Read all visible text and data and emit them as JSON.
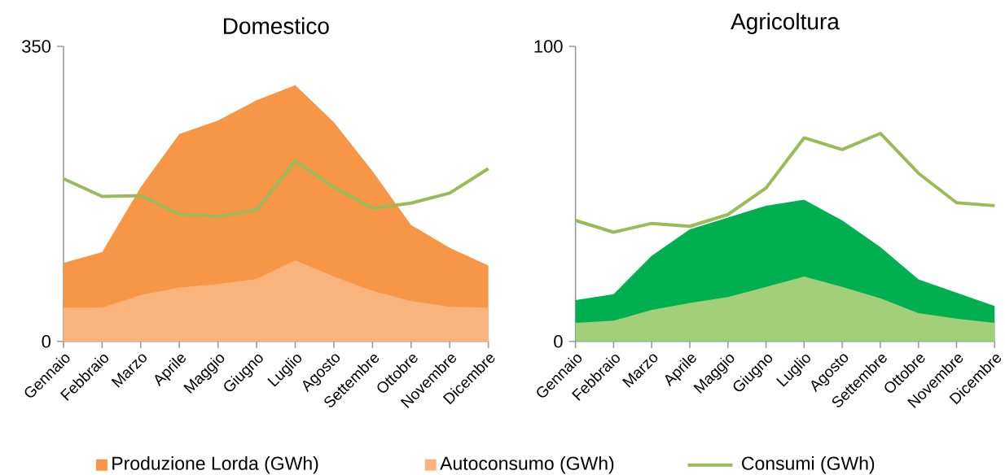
{
  "chart_data": [
    {
      "type": "area",
      "title": "Domestico",
      "categories": [
        "Gennaio",
        "Febbraio",
        "Marzo",
        "Aprile",
        "Maggio",
        "Giugno",
        "Luglio",
        "Agosto",
        "Settembre",
        "Ottobre",
        "Novembre",
        "Dicembre"
      ],
      "ylim": [
        0,
        350
      ],
      "yticks": [
        0,
        350
      ],
      "legend": "bottom",
      "series": [
        {
          "name": "Produzione Lorda (GWh)",
          "color": "#f79646",
          "values": [
            93,
            106,
            183,
            246,
            262,
            286,
            304,
            260,
            202,
            138,
            111,
            90
          ]
        },
        {
          "name": "Autoconsumo (GWh)",
          "color": "#f9b47e",
          "values": [
            40,
            40,
            55,
            64,
            68,
            74,
            96,
            77,
            60,
            48,
            41,
            40
          ]
        },
        {
          "name": "Consumi (GWh)",
          "type": "line",
          "color": "#9bbb59",
          "values": [
            193,
            172,
            173,
            151,
            148,
            156,
            214,
            183,
            158,
            164,
            176,
            205
          ]
        }
      ]
    },
    {
      "type": "area",
      "title": "Agricoltura",
      "categories": [
        "Gennaio",
        "Febbraio",
        "Marzo",
        "Aprile",
        "Maggio",
        "Giugno",
        "Luglio",
        "Agosto",
        "Settembre",
        "Ottobre",
        "Novembre",
        "Dicembre"
      ],
      "ylim": [
        0,
        100
      ],
      "yticks": [
        0,
        100
      ],
      "series": [
        {
          "color": "#00b050",
          "values": [
            14,
            16,
            29,
            38,
            42,
            46,
            48,
            41,
            32,
            21,
            16.5,
            12
          ]
        },
        {
          "color": "#a3cf7a",
          "values": [
            6.3,
            7,
            10.7,
            13,
            15,
            18.5,
            22,
            18.5,
            14.6,
            9.6,
            7.7,
            6.3
          ]
        },
        {
          "type": "line",
          "color": "#9bbb59",
          "values": [
            41,
            37,
            40,
            39,
            43,
            52,
            69,
            65,
            70.5,
            57,
            47,
            46
          ]
        }
      ]
    }
  ]
}
